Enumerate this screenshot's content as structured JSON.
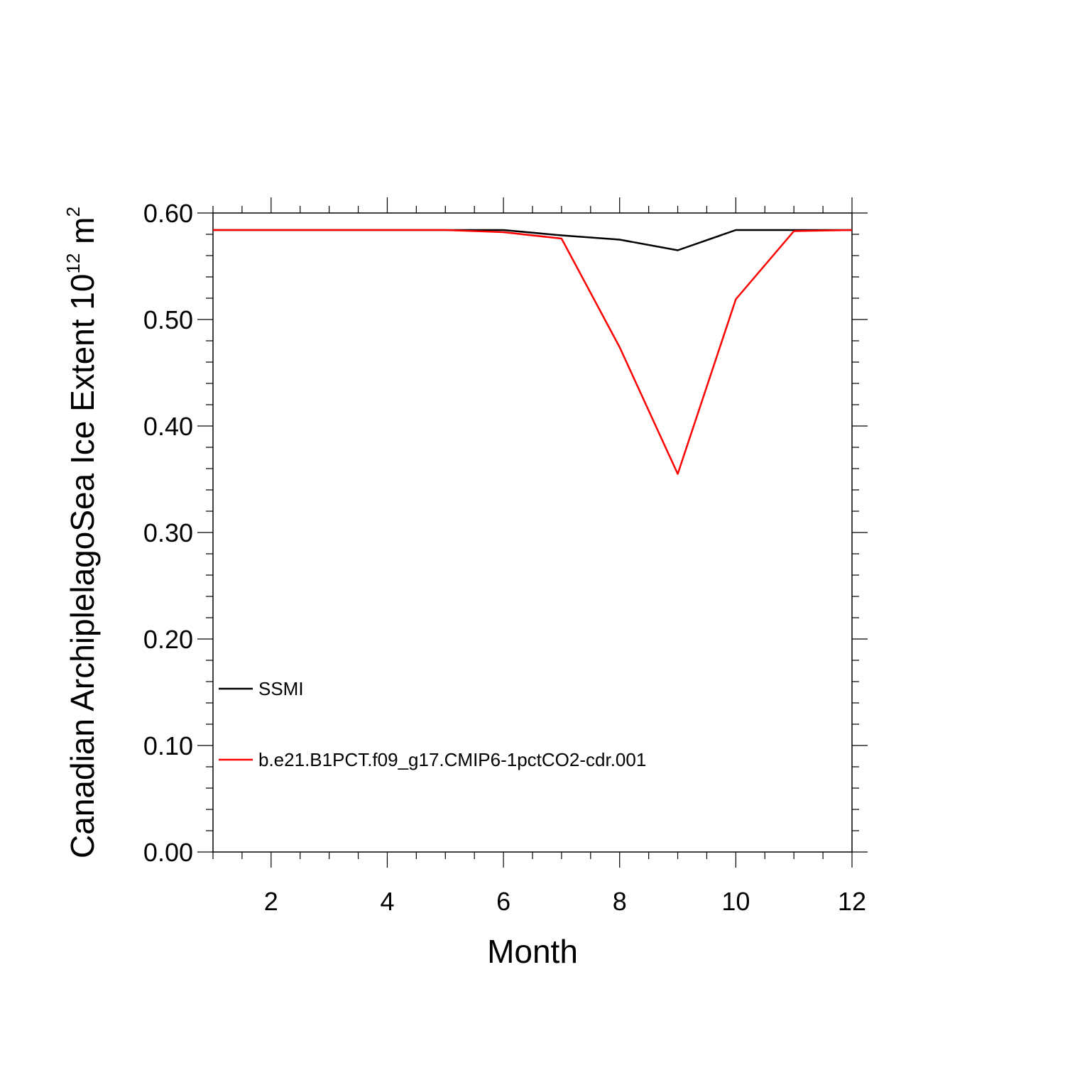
{
  "chart_data": {
    "type": "line",
    "xlabel": "Month",
    "ylabel": "Canadian ArchiplelagoSea Ice Extent 10",
    "ylabel_sup1": "12",
    "ylabel_unit": " m",
    "ylabel_sup2": "2",
    "xlim": [
      1,
      12
    ],
    "ylim": [
      0,
      0.6
    ],
    "x_ticks": [
      2,
      4,
      6,
      8,
      10,
      12
    ],
    "x_tick_labels": [
      "2",
      "4",
      "6",
      "8",
      "10",
      "12"
    ],
    "y_ticks": [
      0,
      0.1,
      0.2,
      0.3,
      0.4,
      0.5,
      0.6
    ],
    "y_tick_labels": [
      "0.00",
      "0.10",
      "0.20",
      "0.30",
      "0.40",
      "0.50",
      "0.60"
    ],
    "x": [
      1,
      2,
      3,
      4,
      5,
      6,
      7,
      8,
      9,
      10,
      11,
      12
    ],
    "series": [
      {
        "name": "SSMI",
        "color": "#000000",
        "values": [
          0.584,
          0.584,
          0.584,
          0.584,
          0.584,
          0.584,
          0.579,
          0.575,
          0.565,
          0.584,
          0.584,
          0.584
        ]
      },
      {
        "name": "b.e21.B1PCT.f09_g17.CMIP6-1pctCO2-cdr.001",
        "color": "#ff0000",
        "values": [
          0.584,
          0.584,
          0.584,
          0.584,
          0.584,
          0.582,
          0.576,
          0.474,
          0.355,
          0.519,
          0.583,
          0.584
        ]
      }
    ],
    "legend_position": "lower-left",
    "grid": false
  }
}
